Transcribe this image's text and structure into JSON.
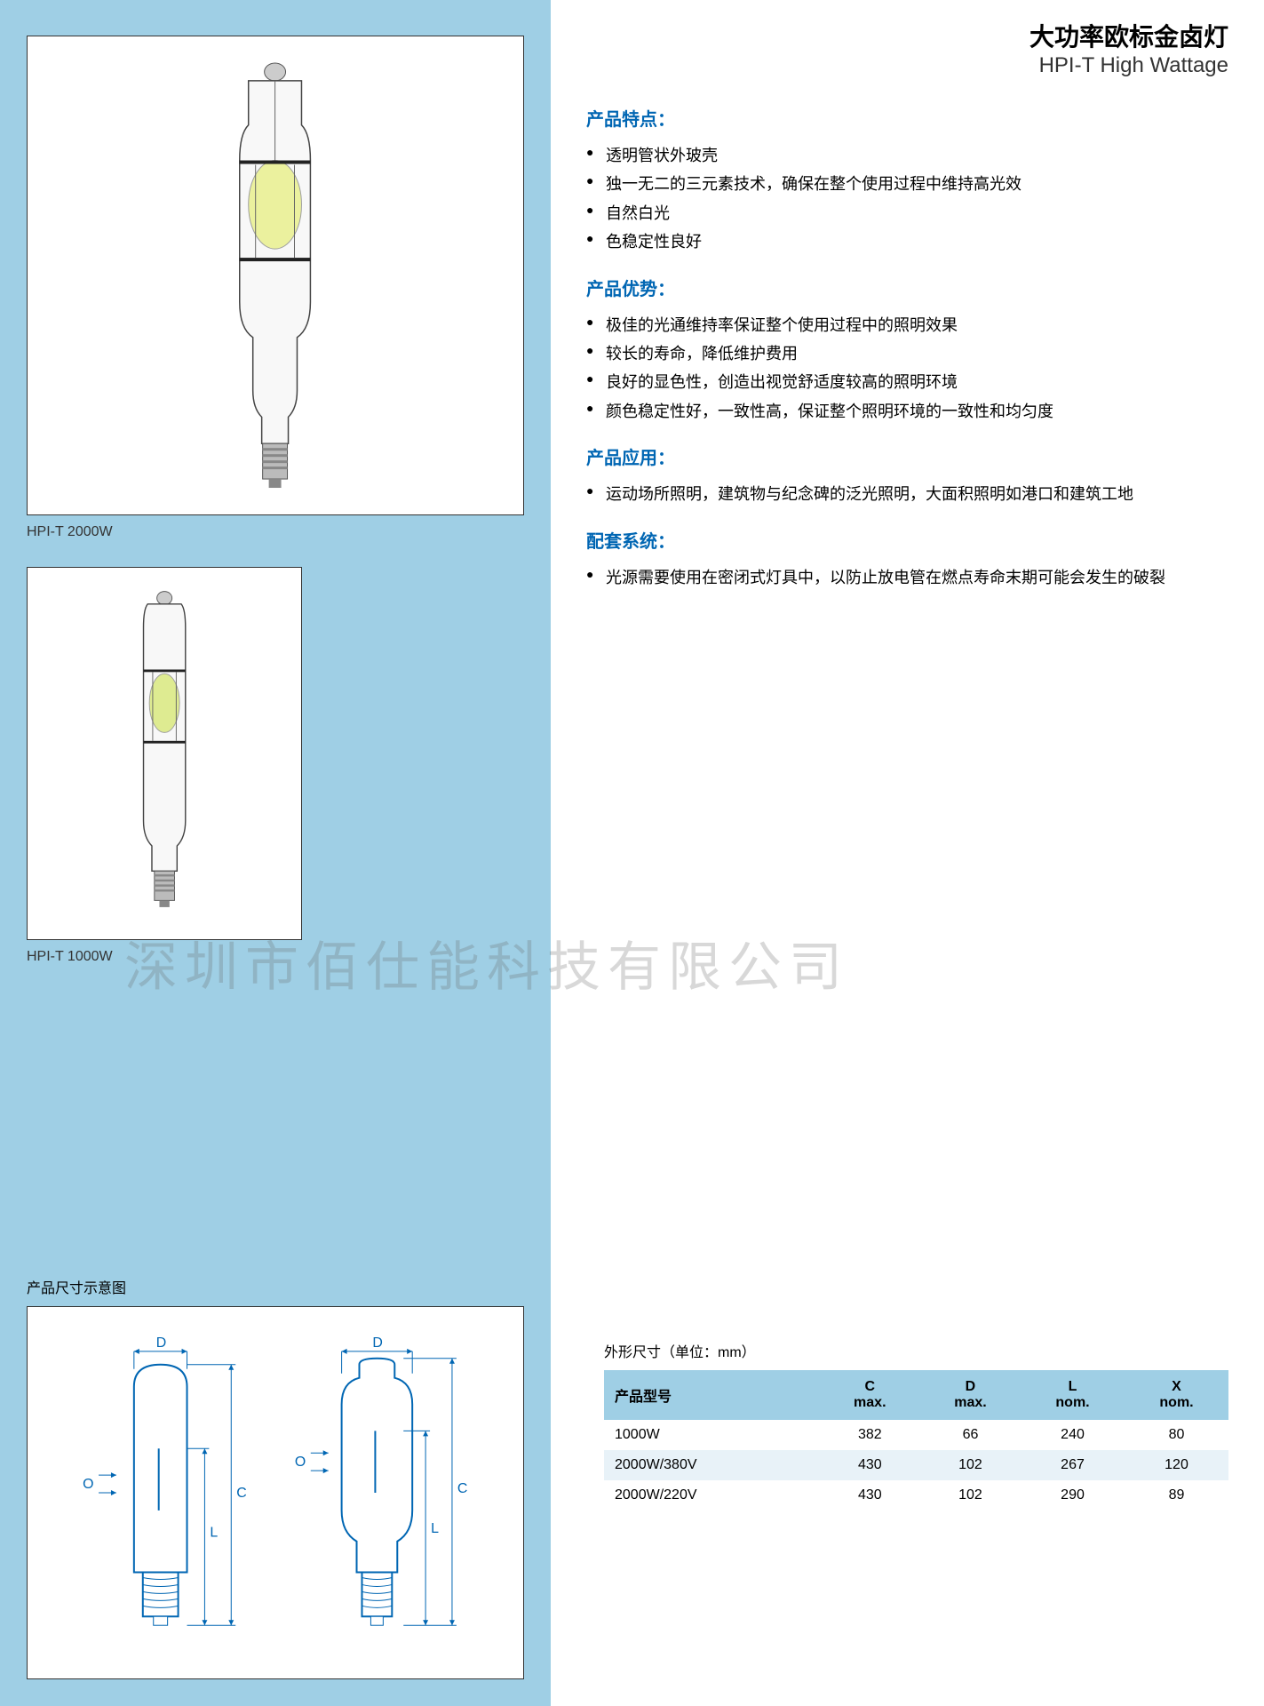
{
  "header": {
    "title_zh": "大功率欧标金卤灯",
    "title_en": "HPI-T High Wattage"
  },
  "products": [
    {
      "caption": "HPI-T 2000W"
    },
    {
      "caption": "HPI-T 1000W"
    }
  ],
  "sections": [
    {
      "title": "产品特点：",
      "items": [
        "透明管状外玻壳",
        "独一无二的三元素技术，确保在整个使用过程中维持高光效",
        "自然白光",
        "色稳定性良好"
      ]
    },
    {
      "title": "产品优势：",
      "items": [
        "极佳的光通维持率保证整个使用过程中的照明效果",
        "较长的寿命，降低维护费用",
        "良好的显色性，创造出视觉舒适度较高的照明环境",
        "颜色稳定性好，一致性高，保证整个照明环境的一致性和均匀度"
      ]
    },
    {
      "title": "产品应用：",
      "items": [
        "运动场所照明，建筑物与纪念碑的泛光照明，大面积照明如港口和建筑工地"
      ]
    },
    {
      "title": "配套系统：",
      "items": [
        "光源需要使用在密闭式灯具中，以防止放电管在燃点寿命末期可能会发生的破裂"
      ]
    }
  ],
  "watermark": "深圳市佰仕能科技有限公司",
  "diagram": {
    "title": "产品尺寸示意图",
    "labels": {
      "D": "D",
      "O": "O",
      "L": "L",
      "C": "C"
    }
  },
  "dimensions": {
    "title": "外形尺寸（单位：mm）",
    "columns": [
      "产品型号",
      "C\nmax.",
      "D\nmax.",
      "L\nnom.",
      "X\nnom."
    ],
    "rows": [
      [
        "1000W",
        "382",
        "66",
        "240",
        "80"
      ],
      [
        "2000W/380V",
        "430",
        "102",
        "267",
        "120"
      ],
      [
        "2000W/220V",
        "430",
        "102",
        "290",
        "89"
      ]
    ]
  },
  "colors": {
    "left_bg": "#9fcfe5",
    "section_title": "#0066b3",
    "table_header_bg": "#9fcfe5",
    "table_even_bg": "#e8f2f8"
  }
}
